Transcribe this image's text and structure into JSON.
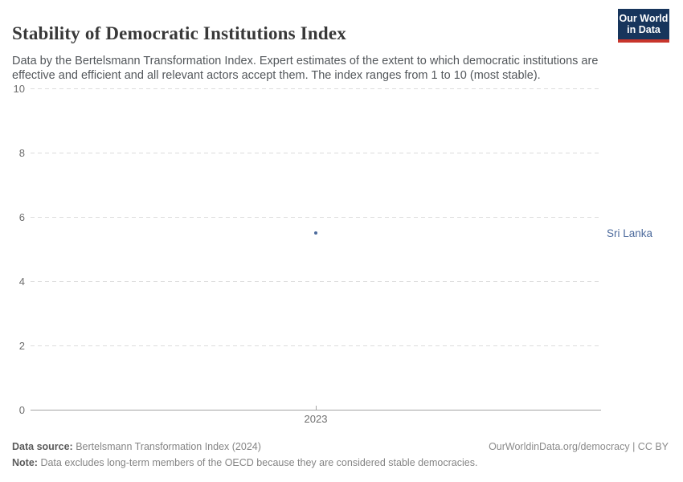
{
  "header": {
    "title": "Stability of Democratic Institutions Index",
    "subtitle": "Data by the Bertelsmann Transformation Index. Expert estimates of the extent to which democratic institutions are effective and efficient and all relevant actors accept them. The index ranges from 1 to 10 (most stable).",
    "logo": {
      "line1": "Our World",
      "line2": "in Data",
      "bg_color": "#17355c",
      "accent_color": "#c8352c"
    }
  },
  "chart_data": {
    "type": "scatter",
    "title": "Stability of Democratic Institutions Index",
    "categories": [
      "2023"
    ],
    "series": [
      {
        "name": "Sri Lanka",
        "values": [
          5.5
        ],
        "color": "#4C6A9C"
      }
    ],
    "xlabel": "",
    "ylabel": "",
    "ylim": [
      0,
      10
    ],
    "yticks": [
      0,
      2,
      4,
      6,
      8,
      10
    ],
    "xticks": [
      "2023"
    ],
    "grid": "horizontal-dashed",
    "gridline_color": "#dcdcdc",
    "axis_color": "#a3a3a3",
    "tick_label_color": "#6e6e6e",
    "legend_position": "entity-label-right"
  },
  "footer": {
    "data_source_label": "Data source:",
    "data_source_value": "Bertelsmann Transformation Index (2024)",
    "link_text": "OurWorldinData.org/democracy | CC BY",
    "note_label": "Note:",
    "note_value": "Data excludes long-term members of the OECD because they are considered stable democracies."
  }
}
